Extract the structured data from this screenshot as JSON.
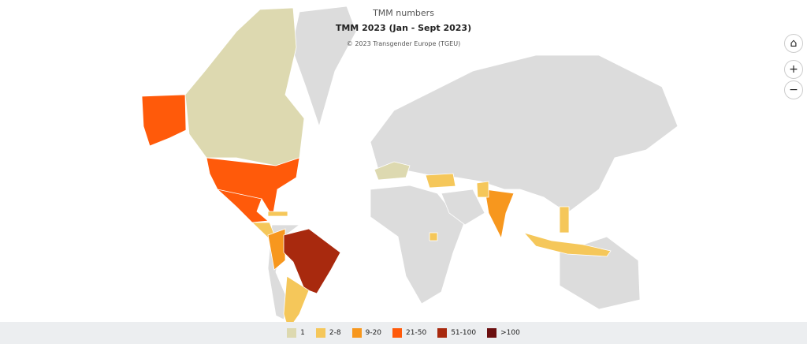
{
  "header": {
    "title": "TMM numbers",
    "subtitle": "TMM 2023 (Jan - Sept 2023)",
    "credit": "© 2023 Transgender Europe (TGEU)"
  },
  "legend": [
    {
      "label": "1",
      "color": "#ddd9b0"
    },
    {
      "label": "2-8",
      "color": "#f5c75a"
    },
    {
      "label": "9-20",
      "color": "#f7971e"
    },
    {
      "label": "21-50",
      "color": "#ff5a0a"
    },
    {
      "label": "51-100",
      "color": "#a8290e"
    },
    {
      "label": ">100",
      "color": "#6b0f0f"
    }
  ]
}
